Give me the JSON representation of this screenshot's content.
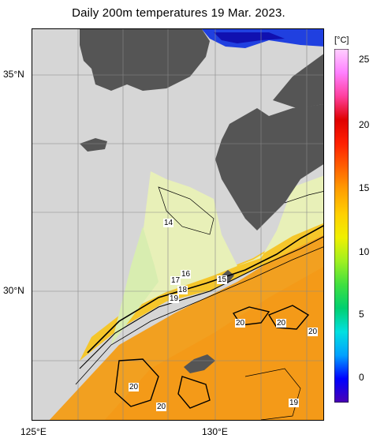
{
  "title": "Daily 200m temperatures 19 Mar. 2023.",
  "axes": {
    "lat_labels": [
      "35°N",
      "30°N"
    ],
    "lon_labels": [
      "125°E",
      "130°E"
    ],
    "lat_range": [
      27.0,
      36.0
    ],
    "lon_range": [
      125.0,
      132.0
    ]
  },
  "colorbar": {
    "unit": "[°C]",
    "range": [
      -3,
      27
    ],
    "ticks": [
      "25",
      "20",
      "15",
      "10",
      "5",
      "0"
    ],
    "colors": [
      "#4b00b4",
      "#0000ff",
      "#00a0ff",
      "#00e0e0",
      "#00d070",
      "#40e040",
      "#a0f020",
      "#f0f000",
      "#ffd000",
      "#ffa000",
      "#ff6000",
      "#ff2000",
      "#e00000",
      "#ff40a0",
      "#ff80ff",
      "#ffd0ff"
    ]
  },
  "land_color": "#555555",
  "nodata_color": "#d6d6d6",
  "contour_labels": [
    "14",
    "16",
    "15",
    "17",
    "18",
    "19",
    "20",
    "20",
    "20",
    "20",
    "20",
    "19"
  ]
}
